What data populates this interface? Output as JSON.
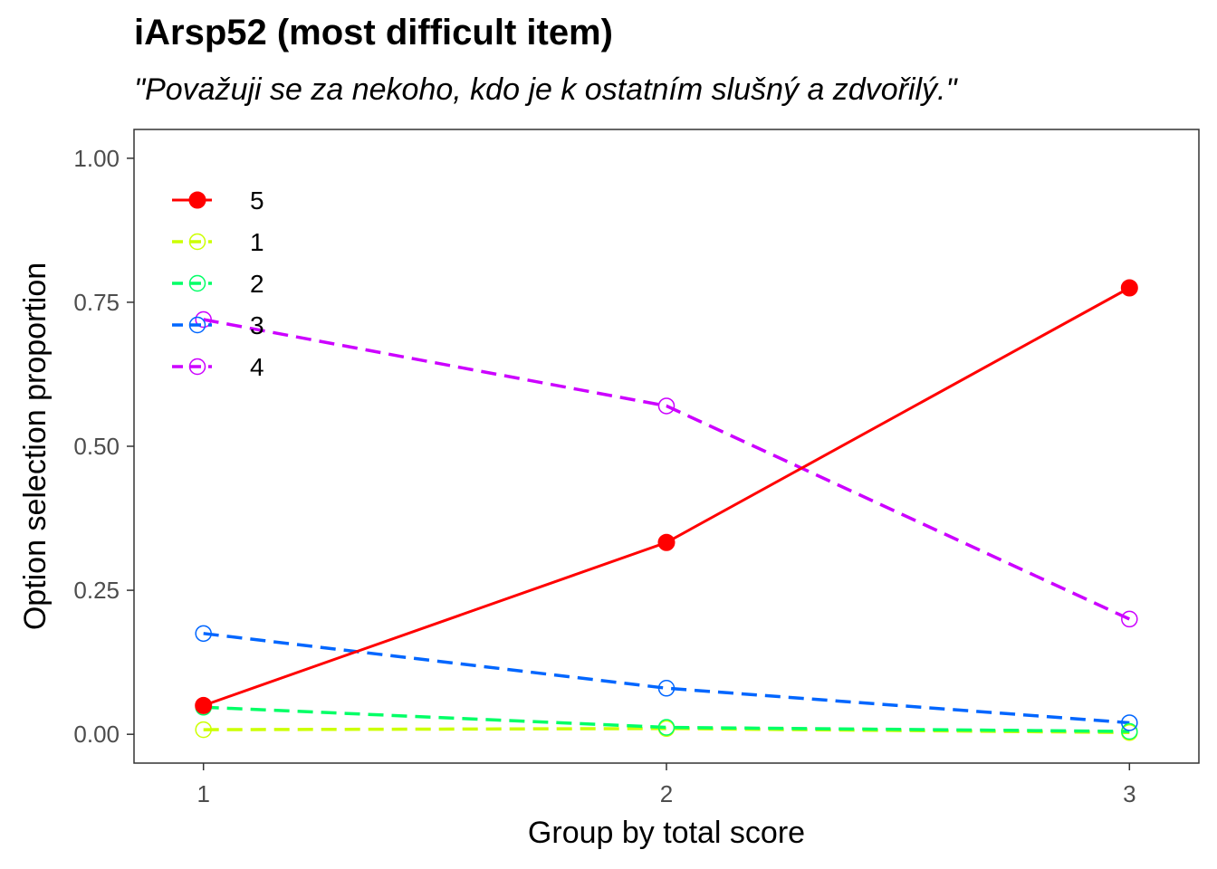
{
  "chart_data": {
    "type": "line",
    "title": "iArsp52 (most difficult item)",
    "subtitle": "\"Považuji se za nekoho, kdo je k ostatním slušný a zdvořilý.\"",
    "xlabel": "Group by total score",
    "ylabel": "Option selection proportion",
    "x": [
      1,
      2,
      3
    ],
    "x_ticks": [
      "1",
      "2",
      "3"
    ],
    "xlim": [
      0.85,
      3.15
    ],
    "ylim": [
      -0.05,
      1.05
    ],
    "y_ticks": [
      "0.00",
      "0.25",
      "0.50",
      "0.75",
      "1.00"
    ],
    "y_tick_values": [
      0,
      0.25,
      0.5,
      0.75,
      1.0
    ],
    "legend_position": "top-left",
    "grid": false,
    "series": [
      {
        "name": "5",
        "values": [
          0.05,
          0.333,
          0.775
        ],
        "color": "#FF0000",
        "dashed": false,
        "filled": true
      },
      {
        "name": "1",
        "values": [
          0.008,
          0.01,
          0.003
        ],
        "color": "#CCFF00",
        "dashed": true,
        "filled": false
      },
      {
        "name": "2",
        "values": [
          0.047,
          0.012,
          0.005
        ],
        "color": "#00FF66",
        "dashed": true,
        "filled": false
      },
      {
        "name": "3",
        "values": [
          0.175,
          0.08,
          0.02
        ],
        "color": "#0066FF",
        "dashed": true,
        "filled": false
      },
      {
        "name": "4",
        "values": [
          0.72,
          0.57,
          0.2
        ],
        "color": "#CC00FF",
        "dashed": true,
        "filled": false
      }
    ]
  }
}
